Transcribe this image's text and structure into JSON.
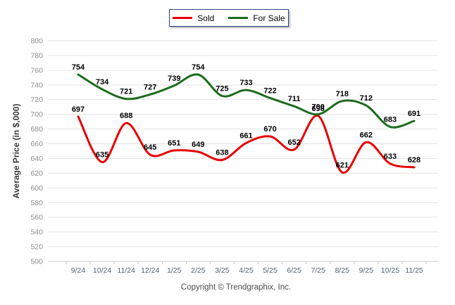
{
  "footer": {
    "copyright": "Copyright © Trendgraphix, Inc."
  },
  "colors": {
    "grid": "#e3e3e3",
    "axis": "#c9c9c9",
    "y_tick_label": "#8c8c8c",
    "x_tick_label": "#51606f",
    "point_label": "#000000",
    "legend_border": "#2e4080",
    "sold": "#e60000",
    "for_sale": "#1c6b1c"
  },
  "chart_data": {
    "type": "line",
    "title": "",
    "xlabel": "",
    "ylabel": "Average Price (in $,000)",
    "categories": [
      "9/24",
      "10/24",
      "11/24",
      "12/24",
      "1/25",
      "2/25",
      "3/25",
      "4/25",
      "5/25",
      "6/25",
      "7/25",
      "8/25",
      "9/25",
      "10/25",
      "11/25"
    ],
    "series": [
      {
        "name": "Sold",
        "color": "#e60000",
        "values": [
          697,
          635,
          688,
          645,
          651,
          649,
          638,
          661,
          670,
          652,
          698,
          621,
          662,
          633,
          628
        ]
      },
      {
        "name": "For Sale",
        "color": "#1c6b1c",
        "values": [
          754,
          734,
          721,
          727,
          739,
          754,
          725,
          733,
          722,
          711,
          700,
          718,
          712,
          683,
          691
        ]
      }
    ],
    "ylim": [
      500,
      800
    ],
    "yticks": [
      500,
      520,
      540,
      560,
      580,
      600,
      620,
      640,
      660,
      680,
      700,
      720,
      740,
      760,
      780,
      800
    ],
    "grid": true,
    "smooth": true,
    "point_labels": true,
    "legend_position": "top-center"
  }
}
